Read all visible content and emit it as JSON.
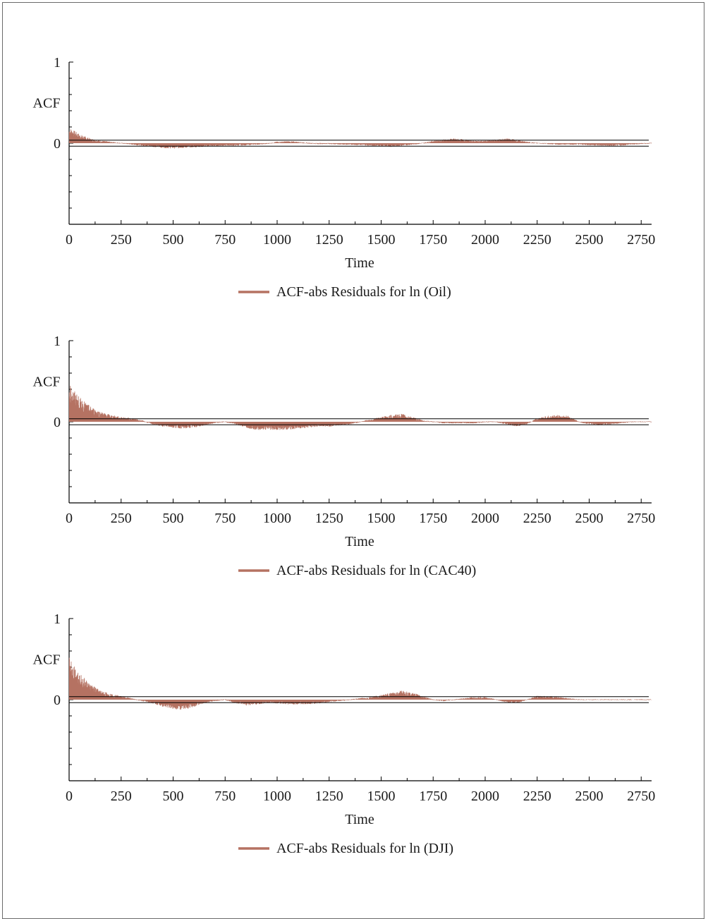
{
  "colors": {
    "series": "#b57262",
    "axis": "#000000",
    "background": "#ffffff"
  },
  "chart_data": [
    {
      "type": "area",
      "ylabel": "ACF",
      "xlabel": "Time",
      "legend": "ACF-abs Residuals for ln (Oil)",
      "legend_position": "bottom",
      "xlim": [
        0,
        2800
      ],
      "ylim": [
        -1,
        1
      ],
      "yticks": [
        "1",
        "0"
      ],
      "xticks": [
        "0",
        "250",
        "500",
        "750",
        "1000",
        "1250",
        "1500",
        "1750",
        "2000",
        "2250",
        "2500",
        "2750"
      ],
      "confidence_band": [
        -0.037,
        0.037
      ],
      "series": [
        {
          "x": [
            0,
            50,
            100,
            150,
            200,
            250,
            300,
            350,
            400,
            450,
            500,
            550,
            600,
            650,
            700,
            750,
            800,
            850,
            900,
            950,
            1000,
            1050,
            1100,
            1150,
            1200,
            1250,
            1300,
            1350,
            1400,
            1450,
            1500,
            1550,
            1600,
            1650,
            1700,
            1750,
            1800,
            1850,
            1900,
            1950,
            2000,
            2050,
            2100,
            2150,
            2200,
            2250,
            2300,
            2350,
            2400,
            2450,
            2500,
            2550,
            2600,
            2650,
            2700,
            2750,
            2800
          ],
          "y": [
            0.14,
            0.08,
            0.04,
            0.02,
            0.01,
            0.0,
            -0.01,
            -0.02,
            -0.03,
            -0.04,
            -0.045,
            -0.04,
            -0.035,
            -0.03,
            -0.025,
            -0.02,
            -0.02,
            -0.015,
            -0.01,
            -0.005,
            0.01,
            0.015,
            0.01,
            0.0,
            -0.005,
            -0.005,
            -0.01,
            -0.01,
            -0.015,
            -0.02,
            -0.025,
            -0.03,
            -0.02,
            -0.01,
            0.0,
            0.02,
            0.03,
            0.04,
            0.03,
            0.02,
            0.02,
            0.03,
            0.04,
            0.03,
            0.01,
            0.0,
            -0.005,
            -0.01,
            -0.01,
            -0.01,
            -0.015,
            -0.02,
            -0.025,
            -0.02,
            -0.01,
            -0.005,
            0.0
          ]
        }
      ]
    },
    {
      "type": "area",
      "ylabel": "ACF",
      "xlabel": "Time",
      "legend": "ACF-abs Residuals for ln (CAC40)",
      "legend_position": "bottom",
      "xlim": [
        0,
        2800
      ],
      "ylim": [
        -1,
        1
      ],
      "yticks": [
        "1",
        "0"
      ],
      "xticks": [
        "0",
        "250",
        "500",
        "750",
        "1000",
        "1250",
        "1500",
        "1750",
        "2000",
        "2250",
        "2500",
        "2750"
      ],
      "confidence_band": [
        -0.037,
        0.037
      ],
      "series": [
        {
          "x": [
            0,
            50,
            100,
            150,
            200,
            250,
            300,
            350,
            400,
            450,
            500,
            550,
            600,
            650,
            700,
            750,
            800,
            850,
            900,
            950,
            1000,
            1050,
            1100,
            1150,
            1200,
            1250,
            1300,
            1350,
            1400,
            1450,
            1500,
            1550,
            1600,
            1650,
            1700,
            1750,
            1800,
            1850,
            1900,
            1950,
            2000,
            2050,
            2100,
            2150,
            2200,
            2250,
            2300,
            2350,
            2400,
            2450,
            2500,
            2550,
            2600,
            2650,
            2700,
            2750,
            2800
          ],
          "y": [
            0.34,
            0.22,
            0.14,
            0.09,
            0.06,
            0.04,
            0.03,
            0.01,
            -0.02,
            -0.04,
            -0.05,
            -0.06,
            -0.05,
            -0.03,
            -0.01,
            0.0,
            -0.02,
            -0.05,
            -0.07,
            -0.07,
            -0.07,
            -0.07,
            -0.06,
            -0.05,
            -0.04,
            -0.04,
            -0.03,
            -0.02,
            0.0,
            0.02,
            0.04,
            0.06,
            0.07,
            0.04,
            0.01,
            0.0,
            -0.01,
            -0.01,
            -0.01,
            -0.01,
            0.0,
            0.0,
            -0.02,
            -0.04,
            -0.02,
            0.03,
            0.05,
            0.06,
            0.05,
            0.0,
            -0.02,
            -0.03,
            -0.02,
            -0.01,
            0.0,
            0.0,
            0.0
          ]
        }
      ]
    },
    {
      "type": "area",
      "ylabel": "ACF",
      "xlabel": "Time",
      "legend": "ACF-abs Residuals for ln (DJI)",
      "legend_position": "bottom",
      "xlim": [
        0,
        2800
      ],
      "ylim": [
        -1,
        1
      ],
      "yticks": [
        "1",
        "0"
      ],
      "xticks": [
        "0",
        "250",
        "500",
        "750",
        "1000",
        "1250",
        "1500",
        "1750",
        "2000",
        "2250",
        "2500",
        "2750"
      ],
      "confidence_band": [
        -0.037,
        0.037
      ],
      "series": [
        {
          "x": [
            0,
            50,
            100,
            150,
            200,
            250,
            300,
            350,
            400,
            450,
            500,
            550,
            600,
            650,
            700,
            750,
            800,
            850,
            900,
            950,
            1000,
            1050,
            1100,
            1150,
            1200,
            1250,
            1300,
            1350,
            1400,
            1450,
            1500,
            1550,
            1600,
            1650,
            1700,
            1750,
            1800,
            1850,
            1900,
            1950,
            2000,
            2050,
            2100,
            2150,
            2200,
            2250,
            2300,
            2350,
            2400,
            2450,
            2500,
            2550,
            2600,
            2650,
            2700,
            2750,
            2800
          ],
          "y": [
            0.4,
            0.24,
            0.14,
            0.08,
            0.05,
            0.03,
            0.01,
            -0.01,
            -0.03,
            -0.06,
            -0.08,
            -0.09,
            -0.06,
            -0.03,
            -0.01,
            0.0,
            -0.03,
            -0.05,
            -0.04,
            -0.03,
            -0.03,
            -0.04,
            -0.04,
            -0.04,
            -0.03,
            -0.02,
            -0.01,
            0.0,
            0.01,
            0.02,
            0.04,
            0.06,
            0.08,
            0.06,
            0.03,
            0.0,
            -0.01,
            0.0,
            0.01,
            0.02,
            0.02,
            0.0,
            -0.02,
            -0.03,
            0.0,
            0.03,
            0.03,
            0.02,
            0.01,
            0.0,
            0.0,
            0.0,
            0.0,
            0.0,
            0.0,
            0.0,
            0.0
          ]
        }
      ]
    }
  ]
}
